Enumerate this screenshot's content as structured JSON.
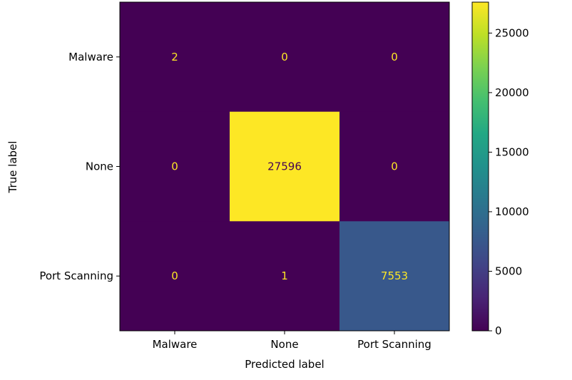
{
  "chart_data": {
    "type": "heatmap",
    "title": "",
    "xlabel": "Predicted label",
    "ylabel": "True label",
    "x_categories": [
      "Malware",
      "None",
      "Port Scanning"
    ],
    "y_categories": [
      "Malware",
      "None",
      "Port Scanning"
    ],
    "matrix": [
      [
        2,
        0,
        0
      ],
      [
        0,
        27596,
        0
      ],
      [
        0,
        1,
        7553
      ]
    ],
    "colormap": "viridis",
    "colorbar": {
      "range": [
        0,
        27596
      ],
      "ticks": [
        0,
        5000,
        10000,
        15000,
        20000,
        25000
      ],
      "tick_labels": [
        "0",
        "5000",
        "10000",
        "15000",
        "20000",
        "25000"
      ]
    },
    "colors": {
      "low": "#440154",
      "high": "#fde725",
      "text_on_dark": "#fde725",
      "text_on_light": "#440154"
    }
  }
}
